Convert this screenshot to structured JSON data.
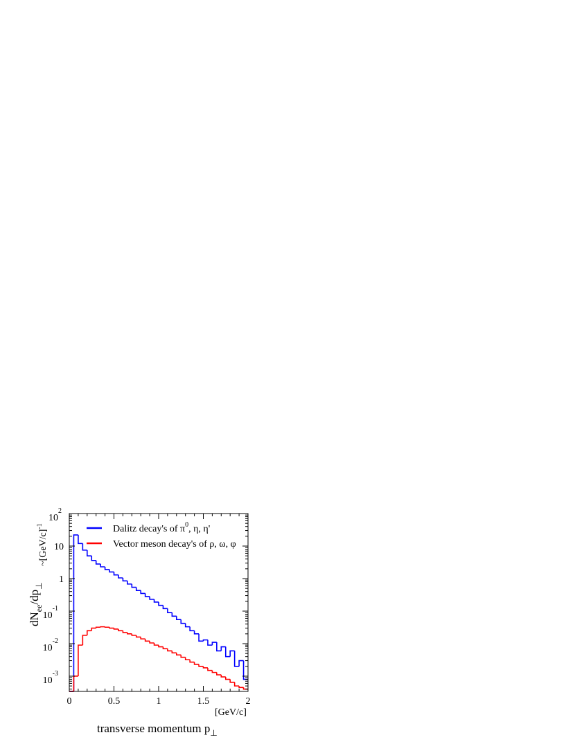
{
  "chart_data": {
    "type": "line",
    "style": "step-histogram",
    "xlabel": "transverse momentum p",
    "xlabel_sub": "⊥",
    "xunit": "[GeV/c]",
    "ylabel_main": "dN",
    "ylabel_sub": "ee",
    "ylabel_mid": "/dp",
    "ylabel_sub2": "⊥",
    "yunit": "~[GeV/c]",
    "yunit_exp": "-1",
    "xlim": [
      0,
      2
    ],
    "ylim": [
      0.00034,
      100
    ],
    "yscale": "log",
    "grid": false,
    "legend_position": "top-right",
    "x_ticks": [
      "0",
      "0.5",
      "1",
      "1.5",
      "2"
    ],
    "x_tick_values": [
      0,
      0.5,
      1,
      1.5,
      2
    ],
    "y_ticks": [
      {
        "value": 100,
        "base": "10",
        "exp": "2"
      },
      {
        "value": 10,
        "base": "10",
        "exp": ""
      },
      {
        "value": 1,
        "base": "1",
        "exp": ""
      },
      {
        "value": 0.1,
        "base": "10",
        "exp": "-1"
      },
      {
        "value": 0.01,
        "base": "10",
        "exp": "-2"
      },
      {
        "value": 0.001,
        "base": "10",
        "exp": "-3"
      }
    ],
    "bin_edges_low": [
      0,
      0.05,
      0.1,
      0.15,
      0.2,
      0.25,
      0.3,
      0.35,
      0.4,
      0.45,
      0.5,
      0.55,
      0.6,
      0.65,
      0.7,
      0.75,
      0.8,
      0.85,
      0.9,
      0.95,
      1.0,
      1.05,
      1.1,
      1.15,
      1.2,
      1.25,
      1.3,
      1.35,
      1.4,
      1.45,
      1.5,
      1.55,
      1.6,
      1.65,
      1.7,
      1.75,
      1.8,
      1.85,
      1.9,
      1.95
    ],
    "bin_width": 0.05,
    "series": [
      {
        "name": "Dalitz decay's of π⁰, η, η'",
        "legend_text": "Dalitz decay's of π",
        "legend_sup": "0",
        "legend_rest": ", η, η'",
        "color": "#0000ff",
        "values": [
          0.0003,
          22,
          12,
          7.5,
          5,
          3.6,
          2.8,
          2.3,
          1.9,
          1.6,
          1.3,
          1.05,
          0.85,
          0.68,
          0.54,
          0.43,
          0.35,
          0.28,
          0.23,
          0.19,
          0.15,
          0.12,
          0.09,
          0.07,
          0.055,
          0.042,
          0.033,
          0.025,
          0.02,
          0.012,
          0.013,
          0.009,
          0.011,
          0.006,
          0.008,
          0.004,
          0.006,
          0.002,
          0.003,
          0.0008
        ]
      },
      {
        "name": "Vector meson decay's of ρ, ω, φ",
        "legend_text": "Vector meson decay's of ρ, ω, φ",
        "color": "#ff0000",
        "values": [
          0.0003,
          0.001,
          0.009,
          0.018,
          0.025,
          0.03,
          0.032,
          0.033,
          0.032,
          0.03,
          0.028,
          0.025,
          0.022,
          0.02,
          0.018,
          0.016,
          0.014,
          0.012,
          0.0105,
          0.009,
          0.008,
          0.007,
          0.006,
          0.0052,
          0.0045,
          0.0038,
          0.0032,
          0.0027,
          0.0023,
          0.002,
          0.0018,
          0.0015,
          0.0013,
          0.0011,
          0.00095,
          0.0008,
          0.00065,
          0.0005,
          0.00045,
          0.0004
        ]
      }
    ]
  }
}
